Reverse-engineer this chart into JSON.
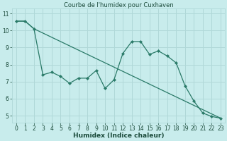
{
  "title": "Courbe de l'humidex pour Cuxhaven",
  "xlabel": "Humidex (Indice chaleur)",
  "background_color": "#c8ecec",
  "grid_color": "#b0d8d8",
  "line_color": "#2a7a68",
  "xlim": [
    -0.5,
    23.5
  ],
  "ylim": [
    4.6,
    11.3
  ],
  "yticks": [
    5,
    6,
    7,
    8,
    9,
    10,
    11
  ],
  "xticks": [
    0,
    1,
    2,
    3,
    4,
    5,
    6,
    7,
    8,
    9,
    10,
    11,
    12,
    13,
    14,
    15,
    16,
    17,
    18,
    19,
    20,
    21,
    22,
    23
  ],
  "series1_x": [
    0,
    1,
    2,
    3,
    4,
    5,
    6,
    7,
    8,
    9,
    10,
    11,
    12,
    13,
    14,
    15,
    16,
    17,
    18,
    19,
    20,
    21,
    22,
    23
  ],
  "series1_y": [
    10.55,
    10.55,
    10.1,
    7.4,
    7.55,
    7.3,
    6.9,
    7.2,
    7.2,
    7.65,
    6.6,
    7.1,
    8.65,
    9.35,
    9.35,
    8.6,
    8.8,
    8.5,
    8.1,
    6.75,
    5.85,
    5.15,
    4.95,
    4.85
  ],
  "series2_x": [
    0,
    1,
    2,
    23
  ],
  "series2_y": [
    10.55,
    10.55,
    10.1,
    4.85
  ],
  "font_color": "#1a4a3a",
  "title_fontsize": 6.0,
  "label_fontsize": 6.5,
  "tick_fontsize": 5.5
}
